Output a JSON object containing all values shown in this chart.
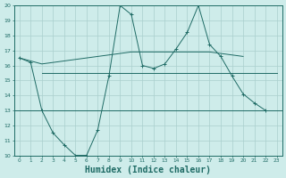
{
  "background_color": "#ceecea",
  "grid_color": "#aacfcd",
  "line_color": "#1f6b65",
  "curve_x": [
    0,
    1,
    2,
    3,
    4,
    5,
    6,
    7,
    8,
    9,
    10,
    11,
    12,
    13,
    14,
    15,
    16,
    17,
    18,
    19,
    20,
    21,
    22,
    23
  ],
  "curve_y": [
    16.5,
    16.2,
    13.0,
    11.5,
    10.7,
    10.0,
    10.0,
    11.7,
    15.3,
    20.0,
    19.4,
    16.0,
    15.8,
    16.1,
    17.1,
    18.2,
    20.0,
    17.4,
    16.6,
    15.3,
    14.1,
    13.5,
    13.0,
    null
  ],
  "upper_line_x": [
    0,
    1,
    2,
    3,
    4,
    5,
    6,
    7,
    8,
    9,
    10,
    11,
    12,
    13,
    14,
    15,
    16,
    17,
    18,
    19,
    20,
    21,
    22,
    23
  ],
  "upper_line_y": [
    16.5,
    16.3,
    16.1,
    16.2,
    16.3,
    16.4,
    16.5,
    16.6,
    16.7,
    16.8,
    16.9,
    16.9,
    16.9,
    16.9,
    16.9,
    16.9,
    16.9,
    16.9,
    16.8,
    16.7,
    16.6,
    null,
    null,
    null
  ],
  "mid_line_x": [
    2,
    3,
    4,
    5,
    6,
    7,
    8,
    9,
    10,
    11,
    12,
    13,
    14,
    15,
    16,
    17,
    18,
    19,
    20,
    21,
    22,
    23
  ],
  "mid_line_y": [
    15.5,
    15.5,
    15.5,
    15.5,
    15.5,
    15.5,
    15.5,
    15.5,
    15.5,
    15.5,
    15.5,
    15.5,
    15.5,
    15.5,
    15.5,
    15.5,
    15.5,
    15.5,
    15.5,
    15.5,
    15.5,
    15.5
  ],
  "flat_line_y": 13.0,
  "ylim": [
    10,
    20
  ],
  "xlim": [
    -0.5,
    23.5
  ],
  "yticks": [
    10,
    11,
    12,
    13,
    14,
    15,
    16,
    17,
    18,
    19,
    20
  ],
  "xticks": [
    0,
    1,
    2,
    3,
    4,
    5,
    6,
    7,
    8,
    9,
    10,
    11,
    12,
    13,
    14,
    15,
    16,
    17,
    18,
    19,
    20,
    21,
    22,
    23
  ],
  "xlabel": "Humidex (Indice chaleur)",
  "xlabel_fontsize": 7
}
